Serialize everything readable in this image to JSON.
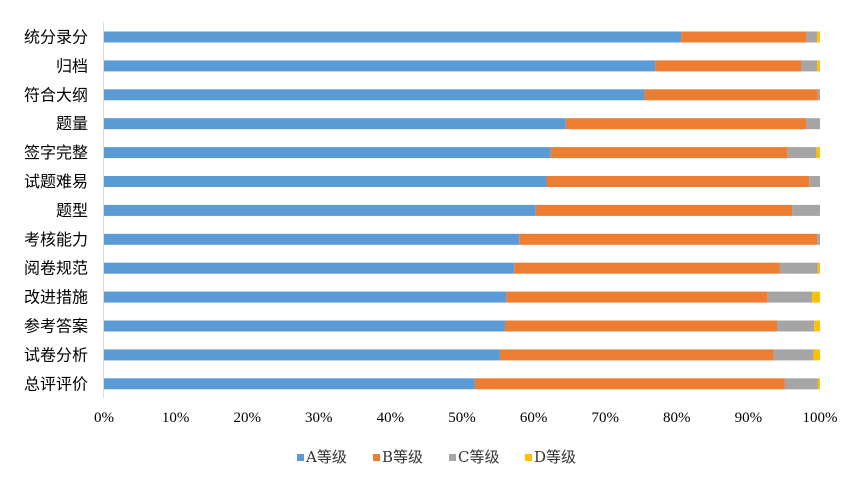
{
  "chart_data": {
    "type": "bar",
    "orientation": "horizontal",
    "stacked": "percent",
    "title": "",
    "xlabel": "",
    "ylabel": "",
    "xlim": [
      0,
      100
    ],
    "x_ticks": [
      "0%",
      "10%",
      "20%",
      "30%",
      "40%",
      "50%",
      "60%",
      "70%",
      "80%",
      "90%",
      "100%"
    ],
    "grid": false,
    "legend_position": "bottom",
    "categories": [
      "统分录分",
      "归档",
      "符合大纲",
      "题量",
      "签字完整",
      "试题难易",
      "题型",
      "考核能力",
      "阅卷规范",
      "改进措施",
      "参考答案",
      "试卷分析",
      "总评评价"
    ],
    "series": [
      {
        "name": "A等级",
        "color": "#5B9BD5",
        "values": [
          80.6,
          77.0,
          75.5,
          64.5,
          62.4,
          61.8,
          60.3,
          58.0,
          57.3,
          56.2,
          56.0,
          55.3,
          51.8
        ]
      },
      {
        "name": "B等级",
        "color": "#ED7D31",
        "values": [
          17.5,
          20.4,
          24.2,
          33.6,
          33.1,
          36.7,
          35.8,
          41.6,
          37.1,
          36.5,
          38.0,
          38.2,
          43.3
        ]
      },
      {
        "name": "C等级",
        "color": "#A5A5A5",
        "values": [
          1.5,
          2.2,
          0.3,
          1.9,
          4.0,
          1.5,
          3.9,
          0.4,
          5.3,
          6.2,
          5.2,
          5.6,
          4.6
        ]
      },
      {
        "name": "D等级",
        "color": "#FFC000",
        "values": [
          0.4,
          0.4,
          0.0,
          0.0,
          0.5,
          0.0,
          0.0,
          0.0,
          0.3,
          1.1,
          0.8,
          0.9,
          0.3
        ]
      }
    ]
  }
}
